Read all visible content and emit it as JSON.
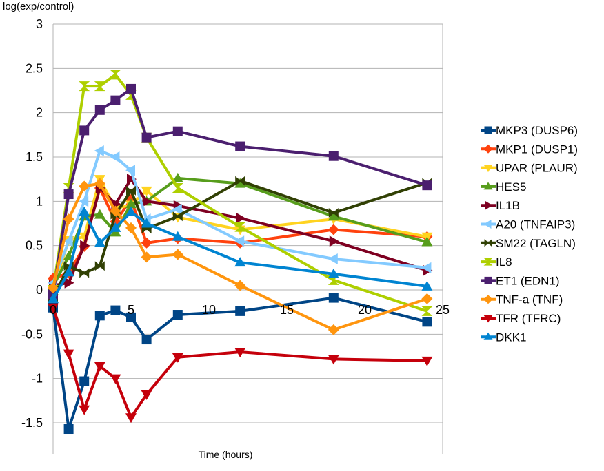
{
  "chart_data": {
    "type": "line",
    "title": "",
    "ylabel": "log(exp/control)",
    "xlabel": "Time (hours)",
    "xlim": [
      0,
      25
    ],
    "ylim": [
      -1.5,
      3
    ],
    "xticks": [
      0,
      5,
      10,
      15,
      20,
      25
    ],
    "yticks": [
      -1.5,
      -1,
      -0.5,
      0,
      0.5,
      1,
      1.5,
      2,
      2.5,
      3
    ],
    "grid": true,
    "legend_position": "right",
    "series": [
      {
        "name": "MKP3 (DUSP6)",
        "color": "#004586",
        "marker": "square",
        "x": [
          0,
          1,
          2,
          3,
          4,
          5,
          6,
          8,
          12,
          18,
          24
        ],
        "y": [
          -0.2,
          -1.57,
          -1.03,
          -0.29,
          -0.23,
          -0.31,
          -0.56,
          -0.28,
          -0.24,
          -0.09,
          -0.36
        ]
      },
      {
        "name": "MKP1 (DUSP1)",
        "color": "#ff420e",
        "marker": "diamond",
        "x": [
          0,
          1,
          2,
          3,
          4,
          5,
          6,
          8,
          12,
          18,
          24
        ],
        "y": [
          0.13,
          0.19,
          0.49,
          1.15,
          0.77,
          1.02,
          0.53,
          0.58,
          0.53,
          0.68,
          0.6
        ]
      },
      {
        "name": "UPAR (PLAUR)",
        "color": "#ffd320",
        "marker": "triangle-down",
        "x": [
          0,
          1,
          2,
          3,
          4,
          5,
          6,
          8,
          12,
          18,
          24
        ],
        "y": [
          0.0,
          0.56,
          0.6,
          1.25,
          0.92,
          0.96,
          1.12,
          0.82,
          0.68,
          0.8,
          0.6
        ]
      },
      {
        "name": "HES5",
        "color": "#579d1c",
        "marker": "triangle-up",
        "x": [
          0,
          1,
          2,
          3,
          4,
          5,
          6,
          8,
          12,
          18,
          24
        ],
        "y": [
          0.04,
          0.38,
          0.83,
          0.85,
          0.65,
          0.97,
          1.0,
          1.26,
          1.2,
          0.83,
          0.54
        ]
      },
      {
        "name": "IL1B",
        "color": "#7e0021",
        "marker": "triangle-right",
        "x": [
          0,
          1,
          2,
          3,
          4,
          5,
          6,
          8,
          12,
          18,
          24
        ],
        "y": [
          0.05,
          0.08,
          0.5,
          1.15,
          0.97,
          1.25,
          1.0,
          0.95,
          0.81,
          0.55,
          0.22
        ]
      },
      {
        "name": "A20 (TNFAIP3)",
        "color": "#83caff",
        "marker": "triangle-left",
        "x": [
          0,
          1,
          2,
          3,
          4,
          5,
          6,
          8,
          12,
          18,
          24
        ],
        "y": [
          0.08,
          0.55,
          1.0,
          1.57,
          1.5,
          1.35,
          0.8,
          0.91,
          0.55,
          0.35,
          0.25
        ]
      },
      {
        "name": "SM22 (TAGLN)",
        "color": "#314004",
        "marker": "cross",
        "x": [
          0,
          1,
          2,
          3,
          4,
          5,
          6,
          8,
          12,
          18,
          24
        ],
        "y": [
          -0.09,
          0.27,
          0.19,
          0.27,
          0.85,
          1.12,
          0.69,
          0.83,
          1.23,
          0.87,
          1.21
        ]
      },
      {
        "name": "IL8",
        "color": "#aecf00",
        "marker": "hourglass",
        "x": [
          0,
          1,
          2,
          3,
          4,
          5,
          6,
          8,
          12,
          18,
          24
        ],
        "y": [
          0.0,
          1.15,
          2.3,
          2.3,
          2.43,
          2.2,
          1.72,
          1.15,
          0.71,
          0.11,
          -0.24
        ]
      },
      {
        "name": "ET1 (EDN1)",
        "color": "#4b1f6f",
        "marker": "square",
        "x": [
          0,
          1,
          2,
          3,
          4,
          5,
          6,
          8,
          12,
          18,
          24
        ],
        "y": [
          -0.05,
          1.08,
          1.8,
          2.03,
          2.14,
          2.27,
          1.72,
          1.79,
          1.62,
          1.51,
          1.18
        ]
      },
      {
        "name": "TNF-a (TNF)",
        "color": "#ff950e",
        "marker": "diamond",
        "x": [
          0,
          1,
          2,
          3,
          4,
          5,
          6,
          8,
          12,
          18,
          24
        ],
        "y": [
          0.02,
          0.8,
          1.17,
          1.2,
          0.89,
          0.7,
          0.37,
          0.4,
          0.05,
          -0.45,
          -0.1
        ]
      },
      {
        "name": "TFR (TFRC)",
        "color": "#c5000b",
        "marker": "triangle-down",
        "x": [
          0,
          1,
          2,
          3,
          4,
          5,
          6,
          8,
          12,
          18,
          24
        ],
        "y": [
          -0.2,
          -0.72,
          -1.35,
          -0.86,
          -1.0,
          -1.44,
          -1.18,
          -0.76,
          -0.7,
          -0.78,
          -0.8
        ]
      },
      {
        "name": "DKK1",
        "color": "#0084d1",
        "marker": "triangle-up",
        "x": [
          0,
          1,
          2,
          3,
          4,
          5,
          6,
          8,
          12,
          18,
          24
        ],
        "y": [
          -0.1,
          0.2,
          0.88,
          0.53,
          0.7,
          0.88,
          0.75,
          0.6,
          0.31,
          0.18,
          0.04
        ]
      }
    ]
  }
}
